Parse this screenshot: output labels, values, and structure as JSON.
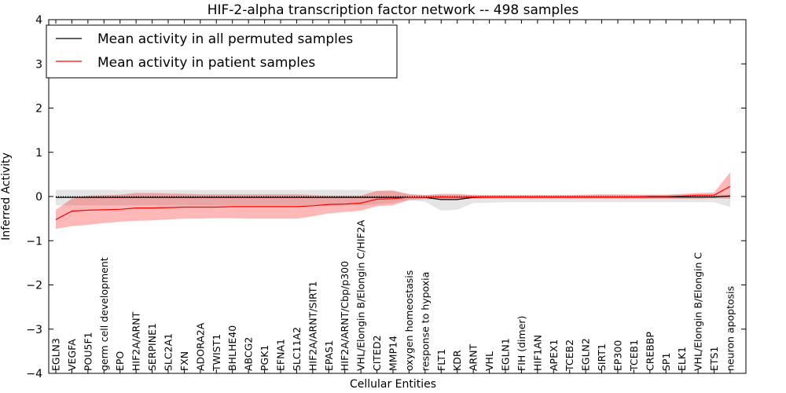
{
  "chart_data": {
    "type": "line",
    "title": "HIF-2-alpha transcription factor network -- 498 samples",
    "xlabel": "Cellular Entities",
    "ylabel": "Inferred Activity",
    "ylim": [
      -4,
      4
    ],
    "yticks": [
      -4,
      -3,
      -2,
      -1,
      0,
      1,
      2,
      3,
      4
    ],
    "ytick_labels": [
      "−4",
      "−3",
      "−2",
      "−1",
      "0",
      "1",
      "2",
      "3",
      "4"
    ],
    "grid": false,
    "legend_position": "top-left",
    "legend": [
      {
        "label": "Mean activity in all permuted samples",
        "color": "#000000"
      },
      {
        "label": "Mean activity in patient samples",
        "color": "#ff0000"
      }
    ],
    "categories": [
      "EGLN3",
      "VEGFA",
      "POU5F1",
      "germ cell development",
      "EPO",
      "HIF2A/ARNT",
      "SERPINE1",
      "SLC2A1",
      "FXN",
      "ADORA2A",
      "TWIST1",
      "BHLHE40",
      "ABCG2",
      "PGK1",
      "EFNA1",
      "SLC11A2",
      "HIF2A/ARNT/SIRT1",
      "EPAS1",
      "HIF2A/ARNT/Cbp/p300",
      "VHL/Elongin B/Elongin C/HIF2A",
      "CITED2",
      "MMP14",
      "oxygen homeostasis",
      "response to hypoxia",
      "FLT1",
      "KDR",
      "ARNT",
      "VHL",
      "EGLN1",
      "FIH (dimer)",
      "HIF1AN",
      "APEX1",
      "TCEB2",
      "EGLN2",
      "SIRT1",
      "EP300",
      "TCEB1",
      "CREBBP",
      "SP1",
      "ELK1",
      "VHL/Elongin B/Elongin C",
      "ETS1",
      "neuron apoptosis"
    ],
    "series": [
      {
        "name": "Mean activity in all permuted samples",
        "color": "#000000",
        "values": [
          -0.02,
          -0.02,
          -0.02,
          -0.02,
          -0.02,
          -0.02,
          -0.02,
          -0.02,
          -0.02,
          -0.02,
          -0.02,
          -0.02,
          -0.02,
          -0.02,
          -0.02,
          -0.02,
          -0.02,
          -0.02,
          -0.02,
          -0.02,
          -0.02,
          -0.02,
          -0.02,
          -0.02,
          -0.07,
          -0.07,
          -0.02,
          -0.01,
          -0.01,
          -0.01,
          -0.01,
          -0.01,
          -0.01,
          -0.01,
          -0.01,
          -0.01,
          -0.01,
          -0.01,
          -0.01,
          -0.01,
          -0.01,
          -0.01,
          0.01
        ],
        "band_upper": [
          0.15,
          0.15,
          0.15,
          0.15,
          0.15,
          0.15,
          0.15,
          0.15,
          0.15,
          0.15,
          0.15,
          0.15,
          0.15,
          0.15,
          0.15,
          0.15,
          0.15,
          0.15,
          0.15,
          0.15,
          0.13,
          0.12,
          0.06,
          0.04,
          0.04,
          0.04,
          0.04,
          0.04,
          0.04,
          0.04,
          0.04,
          0.04,
          0.04,
          0.04,
          0.04,
          0.04,
          0.04,
          0.04,
          0.04,
          0.04,
          0.04,
          0.04,
          0.05
        ],
        "band_lower": [
          -0.2,
          -0.2,
          -0.2,
          -0.2,
          -0.2,
          -0.2,
          -0.2,
          -0.2,
          -0.2,
          -0.2,
          -0.2,
          -0.2,
          -0.2,
          -0.2,
          -0.2,
          -0.2,
          -0.2,
          -0.2,
          -0.2,
          -0.2,
          -0.18,
          -0.15,
          -0.08,
          -0.12,
          -0.32,
          -0.3,
          -0.15,
          -0.14,
          -0.13,
          -0.13,
          -0.13,
          -0.13,
          -0.13,
          -0.13,
          -0.13,
          -0.13,
          -0.13,
          -0.13,
          -0.13,
          -0.13,
          -0.13,
          -0.13,
          -0.24
        ]
      },
      {
        "name": "Mean activity in patient samples",
        "color": "#ff0000",
        "values": [
          -0.52,
          -0.33,
          -0.31,
          -0.3,
          -0.29,
          -0.26,
          -0.26,
          -0.25,
          -0.24,
          -0.24,
          -0.24,
          -0.23,
          -0.23,
          -0.23,
          -0.23,
          -0.23,
          -0.21,
          -0.18,
          -0.17,
          -0.15,
          -0.06,
          -0.05,
          -0.02,
          -0.02,
          -0.01,
          -0.02,
          -0.01,
          -0.01,
          -0.01,
          -0.01,
          -0.01,
          -0.01,
          -0.01,
          -0.01,
          -0.01,
          -0.01,
          -0.01,
          0.0,
          0.0,
          0.01,
          0.03,
          0.03,
          0.23
        ],
        "band_upper": [
          -0.3,
          -0.05,
          0.02,
          0.03,
          0.04,
          0.08,
          0.08,
          0.07,
          0.06,
          0.05,
          0.05,
          0.05,
          0.05,
          0.05,
          0.05,
          0.05,
          0.03,
          0.02,
          0.02,
          0.02,
          0.13,
          0.14,
          0.05,
          0.03,
          0.06,
          0.06,
          0.03,
          0.03,
          0.03,
          0.03,
          0.03,
          0.03,
          0.03,
          0.04,
          0.05,
          0.05,
          0.04,
          0.04,
          0.04,
          0.06,
          0.08,
          0.09,
          0.55
        ],
        "band_lower": [
          -0.73,
          -0.67,
          -0.64,
          -0.6,
          -0.57,
          -0.55,
          -0.54,
          -0.52,
          -0.5,
          -0.5,
          -0.49,
          -0.49,
          -0.5,
          -0.5,
          -0.5,
          -0.5,
          -0.45,
          -0.38,
          -0.35,
          -0.32,
          -0.22,
          -0.2,
          -0.08,
          -0.06,
          -0.06,
          -0.06,
          -0.05,
          -0.05,
          -0.05,
          -0.05,
          -0.05,
          -0.05,
          -0.05,
          -0.05,
          -0.05,
          -0.05,
          -0.05,
          -0.05,
          -0.05,
          -0.05,
          -0.05,
          -0.04,
          -0.05
        ]
      }
    ]
  }
}
